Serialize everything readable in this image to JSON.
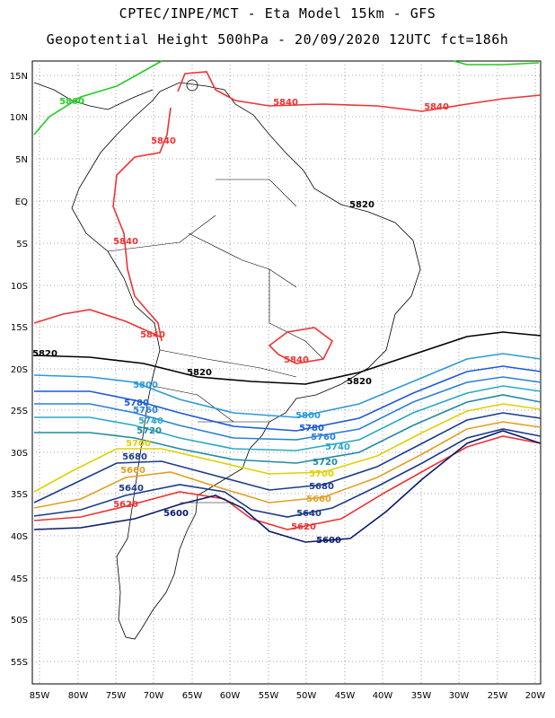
{
  "header": {
    "line1": "CPTEC/INPE/MCT -  Eta Model 15km - GFS",
    "line2": "Geopotential Height 500hPa - 20/09/2020 12UTC fct=186h"
  },
  "map": {
    "lon_labels": [
      "85W",
      "80W",
      "75W",
      "70W",
      "65W",
      "60W",
      "55W",
      "50W",
      "45W",
      "40W",
      "35W",
      "30W",
      "25W",
      "20W"
    ],
    "lat_labels": [
      "15N",
      "10N",
      "5N",
      "EQ",
      "5S",
      "10S",
      "15S",
      "20S",
      "25S",
      "30S",
      "35S",
      "40S",
      "45S",
      "50S",
      "55S"
    ],
    "lon_range": [
      -86,
      -20
    ],
    "lat_range": [
      17,
      -58
    ],
    "gridlines": "dotted"
  },
  "contour_labels": [
    {
      "text": "5860",
      "color": "#22cc22"
    },
    {
      "text": "5840",
      "color": "#ee3333"
    },
    {
      "text": "5840",
      "color": "#ee3333"
    },
    {
      "text": "5840",
      "color": "#ee3333"
    },
    {
      "text": "5840",
      "color": "#ee3333"
    },
    {
      "text": "5840",
      "color": "#ee3333"
    },
    {
      "text": "5840",
      "color": "#ee3333"
    },
    {
      "text": "5820",
      "color": "#000000"
    },
    {
      "text": "5820",
      "color": "#000000"
    },
    {
      "text": "5820",
      "color": "#000000"
    },
    {
      "text": "5820",
      "color": "#000000"
    },
    {
      "text": "5800",
      "color": "#2a9ad8"
    },
    {
      "text": "5800",
      "color": "#2a9ad8"
    },
    {
      "text": "5780",
      "color": "#1a5ad8"
    },
    {
      "text": "5780",
      "color": "#1a5ad8"
    },
    {
      "text": "5760",
      "color": "#2a80d8"
    },
    {
      "text": "5760",
      "color": "#2a80d8"
    },
    {
      "text": "5740",
      "color": "#2aa8c8"
    },
    {
      "text": "5740",
      "color": "#2aa8c8"
    },
    {
      "text": "5720",
      "color": "#208aa0"
    },
    {
      "text": "5720",
      "color": "#208aa0"
    },
    {
      "text": "5700",
      "color": "#e0d000"
    },
    {
      "text": "5700",
      "color": "#e0d000"
    },
    {
      "text": "5680",
      "color": "#1a3a8a"
    },
    {
      "text": "5680",
      "color": "#1a3a8a"
    },
    {
      "text": "5660",
      "color": "#e0a020"
    },
    {
      "text": "5660",
      "color": "#e0a020"
    },
    {
      "text": "5640",
      "color": "#1a3a8a"
    },
    {
      "text": "5640",
      "color": "#1a3a8a"
    },
    {
      "text": "5620",
      "color": "#ee3333"
    },
    {
      "text": "5620",
      "color": "#ee3333"
    },
    {
      "text": "5600",
      "color": "#0a1a6a"
    },
    {
      "text": "5600",
      "color": "#0a1a6a"
    }
  ]
}
